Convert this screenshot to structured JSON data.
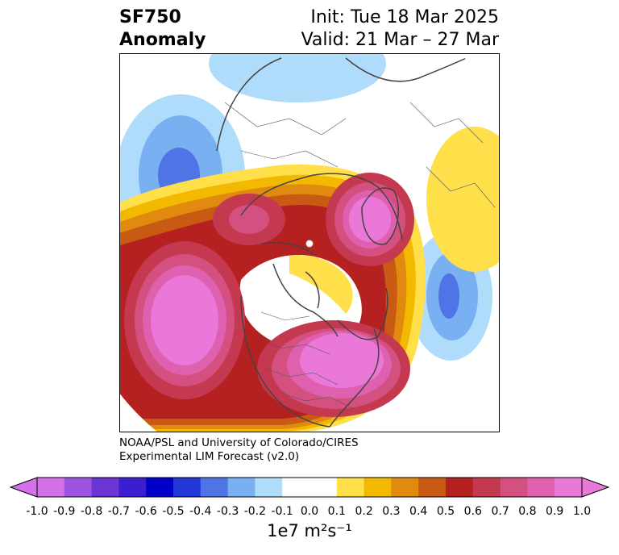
{
  "title": {
    "variable": "SF750",
    "field": "Anomaly"
  },
  "dates": {
    "init": "Init: Tue 18 Mar 2025",
    "valid": "Valid: 21 Mar – 27 Mar"
  },
  "credit": {
    "line1": "NOAA/PSL and University of Colorado/CIRES",
    "line2": "Experimental LIM Forecast (v2.0)"
  },
  "colorbar": {
    "ticks": [
      "-1.0",
      "-0.9",
      "-0.8",
      "-0.7",
      "-0.6",
      "-0.5",
      "-0.4",
      "-0.3",
      "-0.2",
      "-0.1",
      "0.0",
      "0.1",
      "0.2",
      "0.3",
      "0.4",
      "0.5",
      "0.6",
      "0.7",
      "0.8",
      "0.9",
      "1.0"
    ],
    "colors": [
      "#d471e8",
      "#9d53e0",
      "#6b35d6",
      "#3a1ed0",
      "#0000c8",
      "#2438d8",
      "#4f74e6",
      "#79b0f2",
      "#aedcfa",
      "#ffffff",
      "#ffffff",
      "#ffe04a",
      "#f3b800",
      "#e08a10",
      "#c85a14",
      "#b52020",
      "#c43850",
      "#d45080",
      "#e060b0",
      "#ea78d8"
    ],
    "under_color": "#d471e8",
    "over_color": "#ea78d8",
    "units": "1e7 m²s⁻¹"
  }
}
